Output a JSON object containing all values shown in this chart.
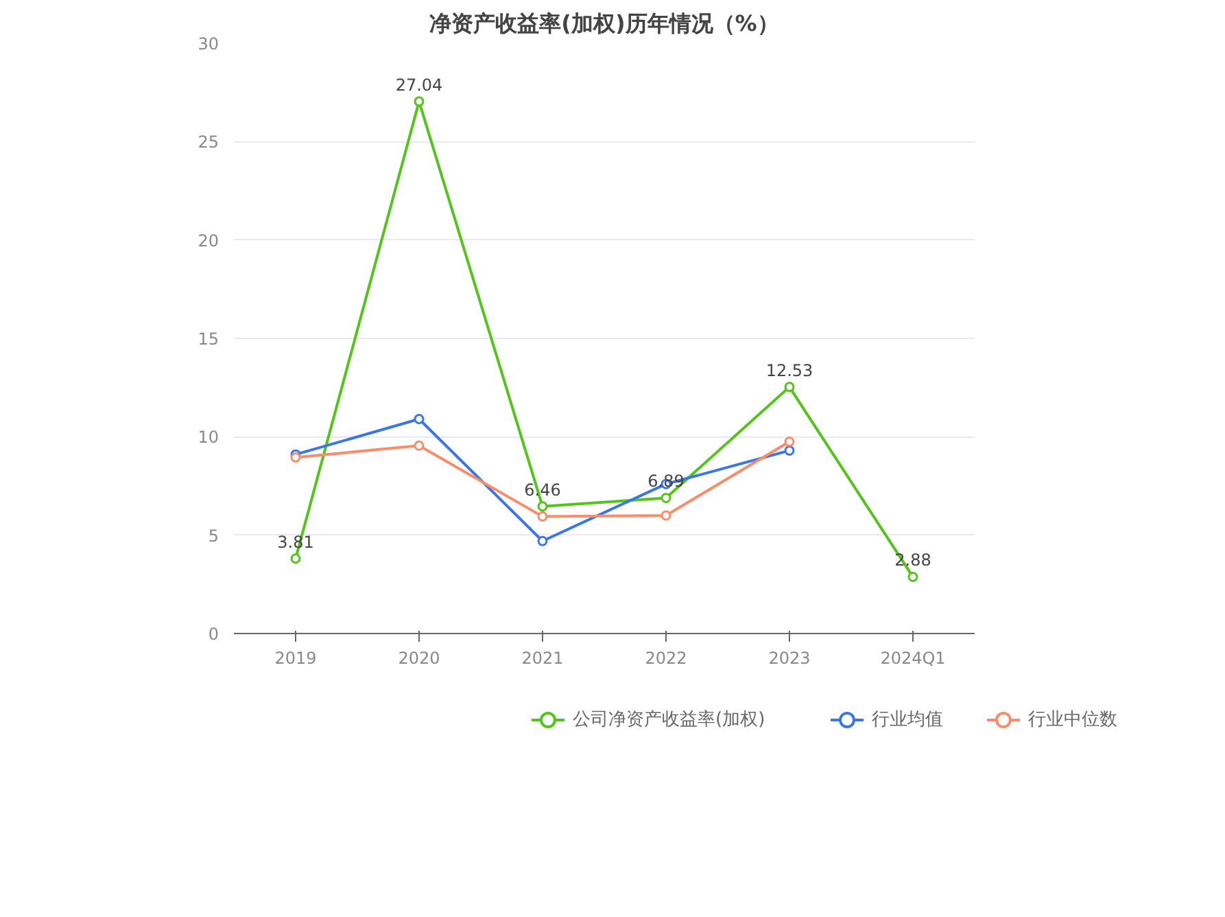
{
  "chart_data": {
    "type": "line",
    "title": "净资产收益率(加权)历年情况（%）",
    "categories": [
      "2019",
      "2020",
      "2021",
      "2022",
      "2023",
      "2024Q1"
    ],
    "series": [
      {
        "name": "公司净资产收益率(加权)",
        "color": "#52c41a",
        "values": [
          3.81,
          27.04,
          6.46,
          6.89,
          12.53,
          2.88
        ],
        "value_labels": [
          "3.81",
          "27.04",
          "6.46",
          "6.89",
          "12.53",
          "2.88"
        ]
      },
      {
        "name": "行业均值",
        "color": "#3a76e8",
        "values": [
          9.1,
          10.9,
          4.7,
          7.6,
          9.3,
          null
        ]
      },
      {
        "name": "行业中位数",
        "color": "#fa8c6a",
        "values": [
          8.95,
          9.55,
          5.95,
          6.0,
          9.75,
          null
        ]
      }
    ],
    "ylim": [
      0,
      30
    ],
    "yticks": [
      0,
      5,
      10,
      15,
      20,
      25,
      30
    ],
    "grid": "y",
    "legend": "bottom",
    "marker": "circle",
    "line_style": "solid"
  }
}
